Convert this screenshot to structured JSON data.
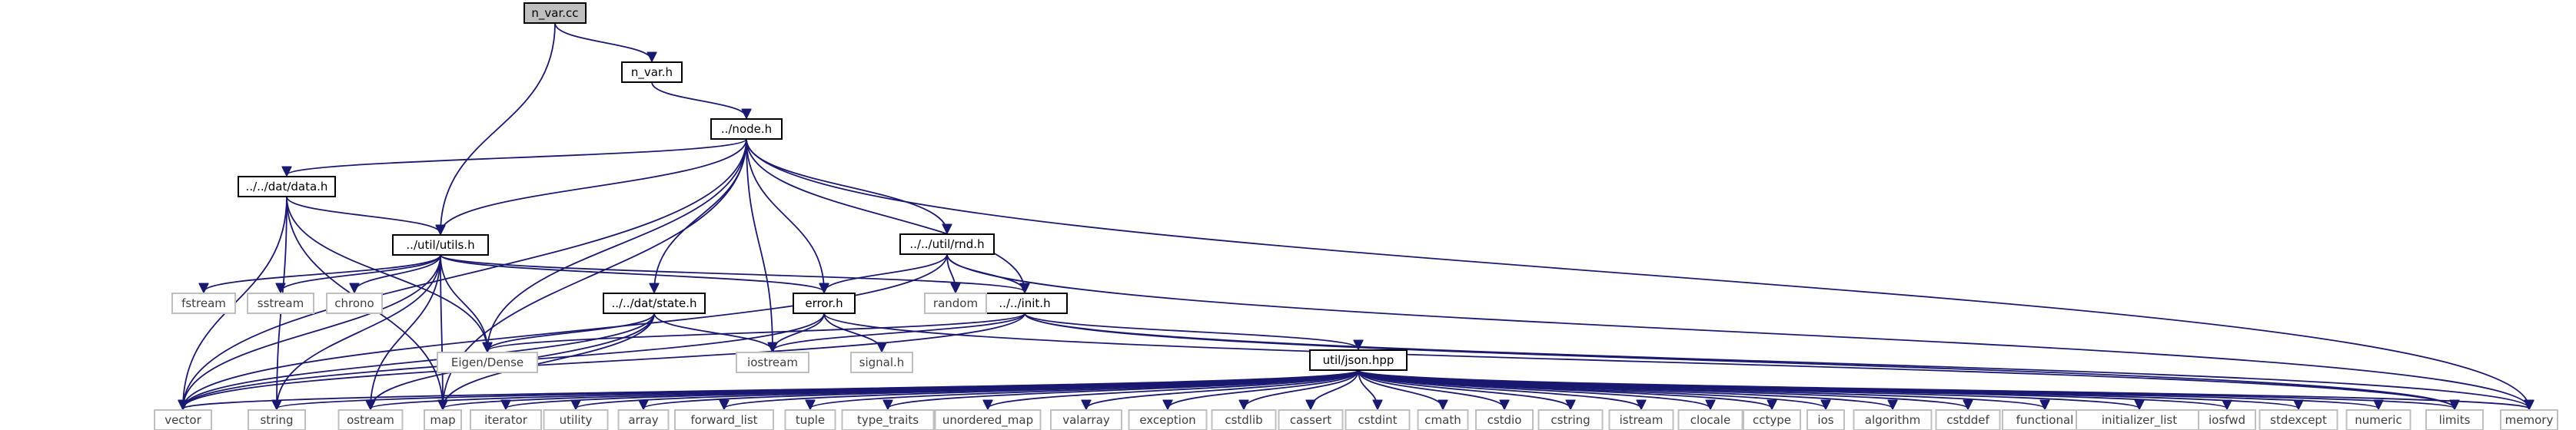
{
  "graph": {
    "nodes": [
      {
        "id": "n_var_cc",
        "label": "n_var.cc",
        "kind": "root"
      },
      {
        "id": "n_var_h",
        "label": "n_var.h",
        "kind": "file"
      },
      {
        "id": "node_h",
        "label": "../node.h",
        "kind": "file"
      },
      {
        "id": "data_h",
        "label": "../../dat/data.h",
        "kind": "file"
      },
      {
        "id": "utils_h",
        "label": "../util/utils.h",
        "kind": "file"
      },
      {
        "id": "rnd_h",
        "label": "../../util/rnd.h",
        "kind": "file"
      },
      {
        "id": "state_h",
        "label": "../../dat/state.h",
        "kind": "file"
      },
      {
        "id": "error_h",
        "label": "error.h",
        "kind": "file"
      },
      {
        "id": "init_h",
        "label": "../../init.h",
        "kind": "file"
      },
      {
        "id": "json_hpp",
        "label": "util/json.hpp",
        "kind": "file"
      },
      {
        "id": "fstream",
        "label": "fstream",
        "kind": "system"
      },
      {
        "id": "sstream",
        "label": "sstream",
        "kind": "system"
      },
      {
        "id": "chrono",
        "label": "chrono",
        "kind": "system"
      },
      {
        "id": "random",
        "label": "random",
        "kind": "system"
      },
      {
        "id": "eigen",
        "label": "Eigen/Dense",
        "kind": "system"
      },
      {
        "id": "iostream",
        "label": "iostream",
        "kind": "system"
      },
      {
        "id": "signal",
        "label": "signal.h",
        "kind": "system"
      },
      {
        "id": "vector",
        "label": "vector",
        "kind": "system"
      },
      {
        "id": "string",
        "label": "string",
        "kind": "system"
      },
      {
        "id": "ostream",
        "label": "ostream",
        "kind": "system"
      },
      {
        "id": "map",
        "label": "map",
        "kind": "system"
      },
      {
        "id": "iterator",
        "label": "iterator",
        "kind": "system"
      },
      {
        "id": "utility",
        "label": "utility",
        "kind": "system"
      },
      {
        "id": "array",
        "label": "array",
        "kind": "system"
      },
      {
        "id": "forward_list",
        "label": "forward_list",
        "kind": "system"
      },
      {
        "id": "tuple",
        "label": "tuple",
        "kind": "system"
      },
      {
        "id": "type_traits",
        "label": "type_traits",
        "kind": "system"
      },
      {
        "id": "unordered_map",
        "label": "unordered_map",
        "kind": "system"
      },
      {
        "id": "valarray",
        "label": "valarray",
        "kind": "system"
      },
      {
        "id": "exception",
        "label": "exception",
        "kind": "system"
      },
      {
        "id": "cstdlib",
        "label": "cstdlib",
        "kind": "system"
      },
      {
        "id": "cassert",
        "label": "cassert",
        "kind": "system"
      },
      {
        "id": "cstdint",
        "label": "cstdint",
        "kind": "system"
      },
      {
        "id": "cmath",
        "label": "cmath",
        "kind": "system"
      },
      {
        "id": "cstdio",
        "label": "cstdio",
        "kind": "system"
      },
      {
        "id": "cstring",
        "label": "cstring",
        "kind": "system"
      },
      {
        "id": "istream",
        "label": "istream",
        "kind": "system"
      },
      {
        "id": "clocale",
        "label": "clocale",
        "kind": "system"
      },
      {
        "id": "cctype",
        "label": "cctype",
        "kind": "system"
      },
      {
        "id": "ios",
        "label": "ios",
        "kind": "system"
      },
      {
        "id": "algorithm",
        "label": "algorithm",
        "kind": "system"
      },
      {
        "id": "cstddef",
        "label": "cstddef",
        "kind": "system"
      },
      {
        "id": "functional",
        "label": "functional",
        "kind": "system"
      },
      {
        "id": "initializer_list",
        "label": "initializer_list",
        "kind": "system"
      },
      {
        "id": "iosfwd",
        "label": "iosfwd",
        "kind": "system"
      },
      {
        "id": "stdexcept",
        "label": "stdexcept",
        "kind": "system"
      },
      {
        "id": "numeric",
        "label": "numeric",
        "kind": "system"
      },
      {
        "id": "limits",
        "label": "limits",
        "kind": "system"
      },
      {
        "id": "memory",
        "label": "memory",
        "kind": "system"
      }
    ],
    "edges": [
      [
        "n_var_cc",
        "n_var_h"
      ],
      [
        "n_var_cc",
        "utils_h"
      ],
      [
        "n_var_h",
        "node_h"
      ],
      [
        "node_h",
        "data_h"
      ],
      [
        "node_h",
        "utils_h"
      ],
      [
        "node_h",
        "rnd_h"
      ],
      [
        "node_h",
        "state_h"
      ],
      [
        "node_h",
        "error_h"
      ],
      [
        "node_h",
        "init_h"
      ],
      [
        "node_h",
        "eigen"
      ],
      [
        "node_h",
        "iostream"
      ],
      [
        "node_h",
        "vector"
      ],
      [
        "node_h",
        "map"
      ],
      [
        "node_h",
        "memory"
      ],
      [
        "data_h",
        "utils_h"
      ],
      [
        "data_h",
        "eigen"
      ],
      [
        "data_h",
        "vector"
      ],
      [
        "data_h",
        "string"
      ],
      [
        "data_h",
        "map"
      ],
      [
        "utils_h",
        "fstream"
      ],
      [
        "utils_h",
        "sstream"
      ],
      [
        "utils_h",
        "chrono"
      ],
      [
        "utils_h",
        "eigen"
      ],
      [
        "utils_h",
        "error_h"
      ],
      [
        "utils_h",
        "init_h"
      ],
      [
        "utils_h",
        "vector"
      ],
      [
        "utils_h",
        "ostream"
      ],
      [
        "utils_h",
        "map"
      ],
      [
        "utils_h",
        "string"
      ],
      [
        "rnd_h",
        "random"
      ],
      [
        "rnd_h",
        "error_h"
      ],
      [
        "rnd_h",
        "init_h"
      ],
      [
        "rnd_h",
        "vector"
      ],
      [
        "rnd_h",
        "memory"
      ],
      [
        "state_h",
        "eigen"
      ],
      [
        "state_h",
        "iostream"
      ],
      [
        "state_h",
        "vector"
      ],
      [
        "state_h",
        "map"
      ],
      [
        "state_h",
        "ostream"
      ],
      [
        "error_h",
        "iostream"
      ],
      [
        "error_h",
        "signal"
      ],
      [
        "error_h",
        "vector"
      ],
      [
        "error_h",
        "limits"
      ],
      [
        "init_h",
        "eigen"
      ],
      [
        "init_h",
        "iostream"
      ],
      [
        "init_h",
        "json_hpp"
      ],
      [
        "init_h",
        "vector"
      ],
      [
        "init_h",
        "limits"
      ],
      [
        "init_h",
        "memory"
      ],
      [
        "json_hpp",
        "vector"
      ],
      [
        "json_hpp",
        "string"
      ],
      [
        "json_hpp",
        "ostream"
      ],
      [
        "json_hpp",
        "map"
      ],
      [
        "json_hpp",
        "iterator"
      ],
      [
        "json_hpp",
        "utility"
      ],
      [
        "json_hpp",
        "array"
      ],
      [
        "json_hpp",
        "forward_list"
      ],
      [
        "json_hpp",
        "tuple"
      ],
      [
        "json_hpp",
        "type_traits"
      ],
      [
        "json_hpp",
        "unordered_map"
      ],
      [
        "json_hpp",
        "valarray"
      ],
      [
        "json_hpp",
        "exception"
      ],
      [
        "json_hpp",
        "cstdlib"
      ],
      [
        "json_hpp",
        "cassert"
      ],
      [
        "json_hpp",
        "cstdint"
      ],
      [
        "json_hpp",
        "cmath"
      ],
      [
        "json_hpp",
        "cstdio"
      ],
      [
        "json_hpp",
        "cstring"
      ],
      [
        "json_hpp",
        "istream"
      ],
      [
        "json_hpp",
        "clocale"
      ],
      [
        "json_hpp",
        "cctype"
      ],
      [
        "json_hpp",
        "ios"
      ],
      [
        "json_hpp",
        "algorithm"
      ],
      [
        "json_hpp",
        "cstddef"
      ],
      [
        "json_hpp",
        "functional"
      ],
      [
        "json_hpp",
        "initializer_list"
      ],
      [
        "json_hpp",
        "iosfwd"
      ],
      [
        "json_hpp",
        "stdexcept"
      ],
      [
        "json_hpp",
        "numeric"
      ],
      [
        "json_hpp",
        "limits"
      ],
      [
        "json_hpp",
        "memory"
      ]
    ]
  }
}
